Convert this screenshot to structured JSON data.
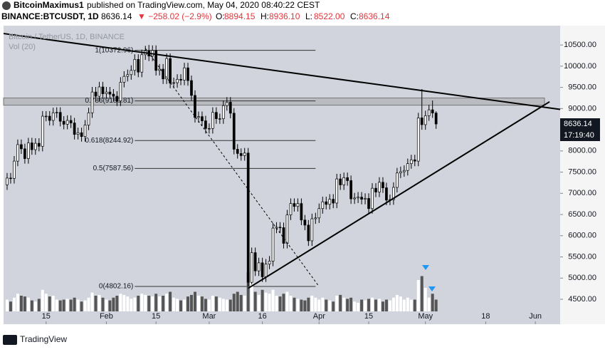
{
  "header": {
    "user": "BitcoinMaximus1",
    "published": "published on TradingView.com, May 04, 2020 08:40:22 CEST",
    "symbol": "BINANCE:BTCUSDT, 1D",
    "change": "▼ −258.02 (−2.9%)",
    "ohlc_labels": [
      "O:",
      "H:",
      "L:",
      "C:"
    ],
    "ohlc_values": [
      "8894.15",
      "8936.10",
      "8522.00",
      "8636.14"
    ]
  },
  "chart_data": {
    "type": "candlestick",
    "legend": "Bitcoin / TetherUS, 1D, BINANCE",
    "volume_label": "Vol (20)",
    "countdown": "17:19:40",
    "x": [
      "2020-01-04",
      "2020-01-05",
      "2020-01-06",
      "2020-01-07",
      "2020-01-08",
      "2020-01-09",
      "2020-01-10",
      "2020-01-11",
      "2020-01-12",
      "2020-01-13",
      "2020-01-14",
      "2020-01-15",
      "2020-01-16",
      "2020-01-17",
      "2020-01-18",
      "2020-01-19",
      "2020-01-20",
      "2020-01-21",
      "2020-01-22",
      "2020-01-23",
      "2020-01-24",
      "2020-01-25",
      "2020-01-26",
      "2020-01-27",
      "2020-01-28",
      "2020-01-29",
      "2020-01-30",
      "2020-01-31",
      "2020-02-01",
      "2020-02-02",
      "2020-02-03",
      "2020-02-04",
      "2020-02-05",
      "2020-02-06",
      "2020-02-07",
      "2020-02-08",
      "2020-02-09",
      "2020-02-10",
      "2020-02-11",
      "2020-02-12",
      "2020-02-13",
      "2020-02-14",
      "2020-02-15",
      "2020-02-16",
      "2020-02-17",
      "2020-02-18",
      "2020-02-19",
      "2020-02-20",
      "2020-02-21",
      "2020-02-22",
      "2020-02-23",
      "2020-02-24",
      "2020-02-25",
      "2020-02-26",
      "2020-02-27",
      "2020-02-28",
      "2020-02-29",
      "2020-03-01",
      "2020-03-02",
      "2020-03-03",
      "2020-03-04",
      "2020-03-05",
      "2020-03-06",
      "2020-03-07",
      "2020-03-08",
      "2020-03-09",
      "2020-03-10",
      "2020-03-11",
      "2020-03-12",
      "2020-03-13",
      "2020-03-14",
      "2020-03-15",
      "2020-03-16",
      "2020-03-17",
      "2020-03-18",
      "2020-03-19",
      "2020-03-20",
      "2020-03-21",
      "2020-03-22",
      "2020-03-23",
      "2020-03-24",
      "2020-03-25",
      "2020-03-26",
      "2020-03-27",
      "2020-03-28",
      "2020-03-29",
      "2020-03-30",
      "2020-03-31",
      "2020-04-01",
      "2020-04-02",
      "2020-04-03",
      "2020-04-04",
      "2020-04-05",
      "2020-04-06",
      "2020-04-07",
      "2020-04-08",
      "2020-04-09",
      "2020-04-10",
      "2020-04-11",
      "2020-04-12",
      "2020-04-13",
      "2020-04-14",
      "2020-04-15",
      "2020-04-16",
      "2020-04-17",
      "2020-04-18",
      "2020-04-19",
      "2020-04-20",
      "2020-04-21",
      "2020-04-22",
      "2020-04-23",
      "2020-04-24",
      "2020-04-25",
      "2020-04-26",
      "2020-04-27",
      "2020-04-28",
      "2020-04-29",
      "2020-04-30",
      "2020-05-01",
      "2020-05-02",
      "2020-05-03",
      "2020-05-04"
    ],
    "open": [
      7200,
      7360,
      7350,
      7760,
      8150,
      8050,
      7820,
      8190,
      8030,
      8180,
      8110,
      8820,
      8820,
      8720,
      8900,
      8910,
      8700,
      8630,
      8720,
      8660,
      8390,
      8430,
      8340,
      8610,
      8900,
      9390,
      9290,
      9510,
      9350,
      9390,
      9340,
      9290,
      9180,
      9620,
      9760,
      9800,
      9900,
      10160,
      9860,
      10270,
      10360,
      10240,
      10370,
      9900,
      9930,
      9700,
      10180,
      9600,
      9610,
      9690,
      9670,
      9960,
      9660,
      9310,
      8790,
      8810,
      8710,
      8530,
      8530,
      8910,
      8760,
      8760,
      9070,
      9150,
      8890,
      8040,
      7940,
      7890,
      7950,
      4900,
      5600,
      5170,
      5360,
      5030,
      5330,
      5400,
      6180,
      6200,
      6190,
      5820,
      6490,
      6760,
      6690,
      6760,
      6370,
      6250,
      5880,
      6400,
      6420,
      6640,
      6800,
      6740,
      6860,
      6770,
      7340,
      7200,
      7370,
      7300,
      6870,
      6890,
      6910,
      6860,
      6880,
      6640,
      7120,
      7030,
      7260,
      7130,
      6840,
      6850,
      7140,
      7480,
      7510,
      7540,
      7700,
      7790,
      7760,
      8780,
      8620,
      8830,
      8970,
      8894.15
    ],
    "high": [
      7480,
      7480,
      7880,
      8270,
      8270,
      8170,
      8310,
      8310,
      8300,
      8300,
      8940,
      8940,
      8940,
      9020,
      9030,
      9030,
      8820,
      8840,
      8840,
      8780,
      8550,
      8550,
      8730,
      9020,
      9510,
      9510,
      9630,
      9630,
      9510,
      9510,
      9460,
      9410,
      9740,
      9880,
      9920,
      10020,
      10280,
      10280,
      10390,
      10480,
      10500,
      10490,
      10490,
      10050,
      10050,
      10300,
      10300,
      9730,
      9810,
      9810,
      10080,
      10080,
      9780,
      9430,
      8930,
      8930,
      8830,
      8650,
      9030,
      9030,
      8880,
      9190,
      9270,
      9270,
      9010,
      8160,
      8060,
      8070,
      8070,
      5720,
      5720,
      5480,
      5480,
      5450,
      5520,
      6300,
      6320,
      6320,
      6310,
      6610,
      6880,
      6880,
      6880,
      6880,
      6490,
      6370,
      6520,
      6540,
      6760,
      6920,
      6920,
      6980,
      6980,
      7460,
      7460,
      7490,
      7490,
      7420,
      7010,
      7030,
      7030,
      7000,
      7000,
      7240,
      7240,
      7380,
      7380,
      7250,
      6970,
      7260,
      7600,
      7630,
      7660,
      7820,
      7910,
      7910,
      8900,
      9460,
      8950,
      9090,
      9190,
      8936.1
    ],
    "low": [
      7080,
      7230,
      7230,
      7640,
      7930,
      7700,
      7700,
      7910,
      7910,
      7990,
      7990,
      8700,
      8600,
      8600,
      8780,
      8580,
      8510,
      8510,
      8540,
      8270,
      8270,
      8220,
      8220,
      8490,
      8780,
      9170,
      9170,
      9230,
      9230,
      9220,
      9170,
      9060,
      9060,
      9500,
      9640,
      9680,
      9780,
      9740,
      9740,
      10150,
      10120,
      10120,
      9780,
      9780,
      9580,
      9580,
      9480,
      9480,
      9490,
      9550,
      9550,
      9540,
      9190,
      8670,
      8670,
      8590,
      8410,
      8410,
      8410,
      8640,
      8640,
      8640,
      8950,
      8770,
      7920,
      7820,
      7770,
      7770,
      4802.16,
      4850,
      5050,
      5050,
      4910,
      4910,
      5210,
      5280,
      6060,
      6070,
      5700,
      5700,
      6370,
      6570,
      6570,
      6250,
      6130,
      5760,
      5760,
      6280,
      6300,
      6520,
      6620,
      6620,
      6650,
      6650,
      7080,
      7080,
      7180,
      6750,
      6750,
      6770,
      6740,
      6740,
      6520,
      6520,
      6910,
      6910,
      7010,
      6720,
      6720,
      6730,
      7020,
      7360,
      7390,
      7420,
      7580,
      7640,
      7640,
      8500,
      8500,
      8710,
      8780,
      8522
    ],
    "close": [
      7360,
      7350,
      7760,
      8150,
      8050,
      7820,
      8190,
      8030,
      8180,
      8110,
      8820,
      8820,
      8720,
      8900,
      8910,
      8700,
      8630,
      8720,
      8660,
      8390,
      8430,
      8340,
      8610,
      8900,
      9390,
      9290,
      9510,
      9350,
      9390,
      9340,
      9290,
      9180,
      9620,
      9760,
      9800,
      9900,
      10160,
      9860,
      10270,
      10360,
      10240,
      10370,
      9900,
      9930,
      9700,
      10180,
      9600,
      9610,
      9690,
      9670,
      9960,
      9660,
      9310,
      8790,
      8810,
      8710,
      8530,
      8530,
      8910,
      8760,
      8760,
      9070,
      9150,
      8890,
      8040,
      7940,
      7890,
      7950,
      4900,
      5600,
      5170,
      5360,
      5030,
      5330,
      5400,
      6180,
      6200,
      6190,
      5820,
      6490,
      6760,
      6690,
      6760,
      6370,
      6250,
      5880,
      6400,
      6420,
      6640,
      6800,
      6740,
      6860,
      6770,
      7340,
      7200,
      7370,
      7300,
      6870,
      6890,
      6910,
      6860,
      6880,
      6640,
      7120,
      7030,
      7260,
      7130,
      6840,
      6850,
      7140,
      7480,
      7510,
      7540,
      7700,
      7790,
      7760,
      8780,
      8620,
      8830,
      8970,
      8894.15,
      8636.14
    ],
    "volume": [
      30,
      25,
      35,
      45,
      40,
      38,
      35,
      28,
      25,
      32,
      55,
      45,
      38,
      40,
      30,
      28,
      30,
      32,
      30,
      35,
      30,
      25,
      28,
      35,
      48,
      40,
      42,
      35,
      30,
      28,
      35,
      40,
      45,
      42,
      38,
      32,
      35,
      40,
      45,
      42,
      40,
      38,
      45,
      38,
      40,
      45,
      50,
      35,
      32,
      28,
      30,
      38,
      42,
      50,
      40,
      38,
      32,
      30,
      40,
      38,
      35,
      32,
      30,
      30,
      45,
      50,
      42,
      40,
      100,
      95,
      50,
      42,
      55,
      48,
      45,
      55,
      40,
      38,
      45,
      50,
      40,
      35,
      32,
      30,
      28,
      35,
      40,
      35,
      30,
      35,
      30,
      28,
      25,
      40,
      42,
      35,
      32,
      35,
      25,
      22,
      30,
      28,
      32,
      35,
      30,
      32,
      25,
      30,
      28,
      35,
      42,
      38,
      30,
      35,
      30,
      30,
      80,
      90,
      60,
      35,
      45,
      30
    ],
    "up_color": "#ffffff",
    "down_color": "#000000",
    "volume_up_color": "#ffffff",
    "volume_down_color": "#555555",
    "xlim": [
      "2020-01-03",
      "2020-06-08"
    ],
    "xticks": [
      {
        "value": "2020-01-15",
        "label": "15"
      },
      {
        "value": "2020-02-01",
        "label": "Feb"
      },
      {
        "value": "2020-02-15",
        "label": "15"
      },
      {
        "value": "2020-03-01",
        "label": "Mar"
      },
      {
        "value": "2020-03-16",
        "label": "16"
      },
      {
        "value": "2020-04-01",
        "label": "Apr"
      },
      {
        "value": "2020-04-15",
        "label": "15"
      },
      {
        "value": "2020-05-01",
        "label": "May"
      },
      {
        "value": "2020-05-18",
        "label": "18"
      },
      {
        "value": "2020-06-01",
        "label": "Jun"
      }
    ],
    "ylim": [
      3912,
      10956
    ],
    "yticks": [
      {
        "value": 4500,
        "label": "4500.00"
      },
      {
        "value": 5000,
        "label": "5000.00"
      },
      {
        "value": 5500,
        "label": "5500.00"
      },
      {
        "value": 6000,
        "label": "6000.00"
      },
      {
        "value": 6500,
        "label": "6500.00"
      },
      {
        "value": 7000,
        "label": "7000.00"
      },
      {
        "value": 7500,
        "label": "7500.00"
      },
      {
        "value": 8000,
        "label": "8000.00"
      },
      {
        "value": 8500,
        "label": "8500.00"
      },
      {
        "value": 9000,
        "label": "9000.00"
      },
      {
        "value": 9500,
        "label": "9500.00"
      },
      {
        "value": 10000,
        "label": "10000.00"
      },
      {
        "value": 10500,
        "label": "10500.00"
      }
    ],
    "fib": {
      "start": "2020-02-09",
      "end": "2020-03-31",
      "levels": [
        {
          "value": 10372.96,
          "label": "1(10372.96)"
        },
        {
          "value": 9180.81,
          "label": "0.786(9180.81)"
        },
        {
          "value": 8244.92,
          "label": "0.618(8244.92)"
        },
        {
          "value": 7587.56,
          "label": "0.5(7587.56)"
        },
        {
          "value": 4802.16,
          "label": "0(4802.16)"
        }
      ]
    },
    "resistance_band": [
      9080,
      9250
    ],
    "trendlines": [
      {
        "x": [
          "2020-01-03",
          "2020-06-08"
        ],
        "values": [
          10770,
          8980
        ]
      },
      {
        "x": [
          "2020-03-12",
          "2020-06-05"
        ],
        "values": [
          4760,
          9160
        ]
      },
      {
        "x": [
          "2020-02-12",
          "2020-04-01"
        ],
        "values": [
          10420,
          4800
        ],
        "dashed": true
      }
    ]
  }
}
